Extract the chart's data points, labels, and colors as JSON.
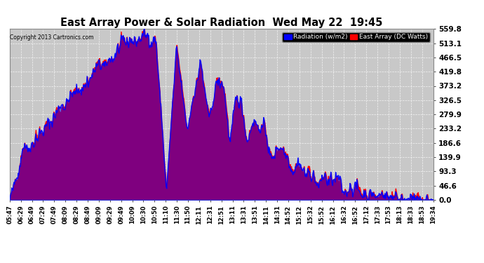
{
  "title": "East Array Power & Solar Radiation  Wed May 22  19:45",
  "copyright": "Copyright 2013 Cartronics.com",
  "legend_radiation": "Radiation (w/m2)",
  "legend_east_array": "East Array (DC Watts)",
  "fill_color_red": "#ff0000",
  "fill_color_blue": "#0000ff",
  "line_color_blue": "#0000ff",
  "line_color_red": "#ff0000",
  "grid_color": "#ffffff",
  "plot_bg_color": "#c8c8c8",
  "fig_bg_color": "#ffffff",
  "y_ticks": [
    0.0,
    46.6,
    93.3,
    139.9,
    186.6,
    233.2,
    279.9,
    326.5,
    373.2,
    419.8,
    466.5,
    513.1,
    559.8
  ],
  "y_max": 559.8,
  "y_min": 0.0,
  "x_labels": [
    "05:47",
    "06:29",
    "06:49",
    "07:29",
    "07:49",
    "08:09",
    "08:29",
    "08:49",
    "09:09",
    "09:29",
    "09:49",
    "10:09",
    "10:30",
    "10:50",
    "11:10",
    "11:30",
    "11:50",
    "12:11",
    "12:31",
    "12:51",
    "13:11",
    "13:31",
    "13:51",
    "14:11",
    "14:31",
    "14:52",
    "15:12",
    "15:32",
    "15:52",
    "16:12",
    "16:32",
    "16:52",
    "17:12",
    "17:33",
    "17:53",
    "18:13",
    "18:33",
    "18:53",
    "19:34"
  ]
}
